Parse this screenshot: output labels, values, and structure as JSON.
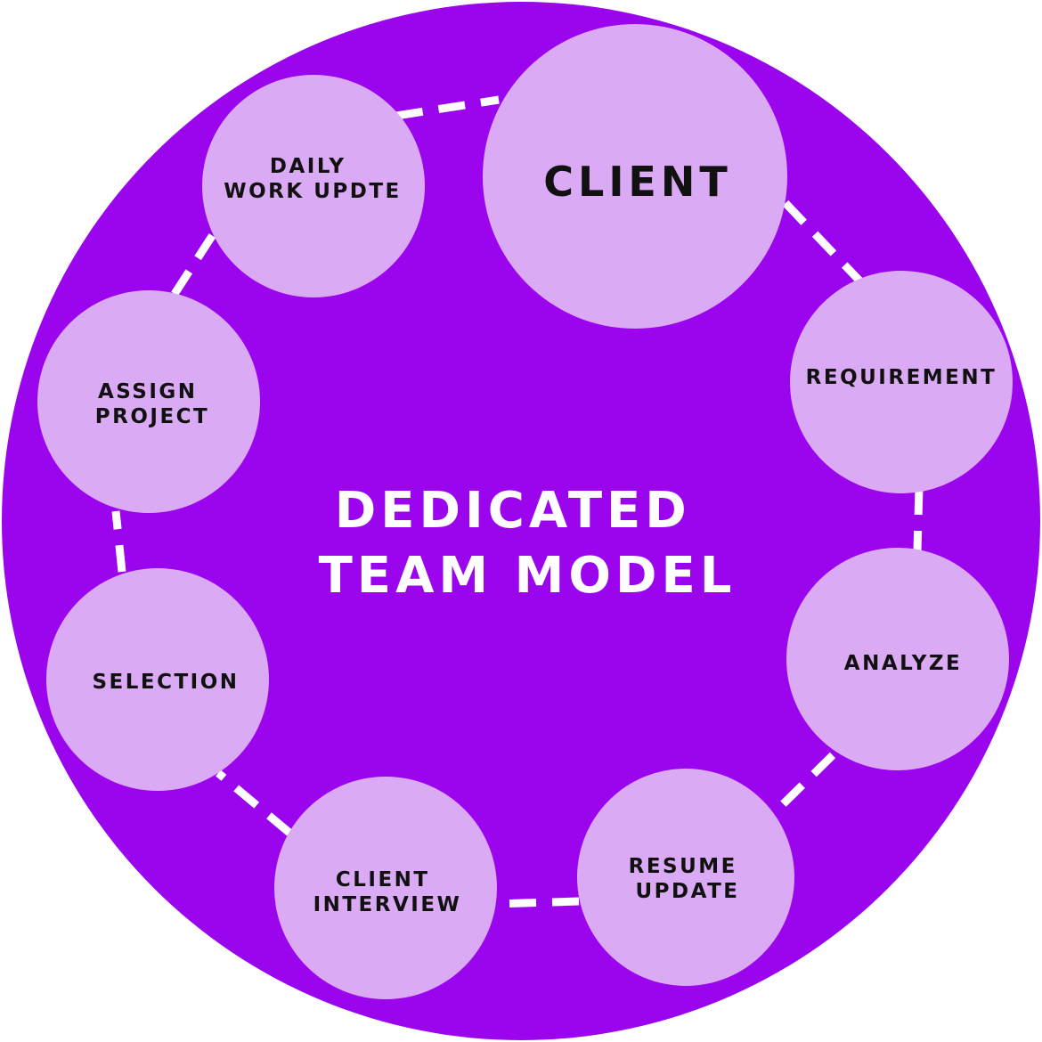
{
  "title_lines": [
    "DEDICATED",
    "TEAM MODEL"
  ],
  "nodes": [
    {
      "id": "client",
      "lines": [
        "CLIENT"
      ]
    },
    {
      "id": "requirement",
      "lines": [
        "REQUIREMENT"
      ]
    },
    {
      "id": "analyze",
      "lines": [
        "ANALYZE"
      ]
    },
    {
      "id": "resume-update",
      "lines": [
        "RESUME",
        "UPDATE"
      ]
    },
    {
      "id": "client-interview",
      "lines": [
        "CLIENT",
        "INTERVIEW"
      ]
    },
    {
      "id": "selection",
      "lines": [
        "SELECTION"
      ]
    },
    {
      "id": "assign-project",
      "lines": [
        "ASSIGN",
        "PROJECT"
      ]
    },
    {
      "id": "daily-work-update",
      "lines": [
        "DAILY",
        "WORK UPDTE"
      ]
    }
  ],
  "colors": {
    "background": "#9b05ee",
    "node_fill": "#dbaaf4",
    "connector": "#ffffff",
    "center_text": "#ffffff",
    "node_text": "#111111"
  }
}
